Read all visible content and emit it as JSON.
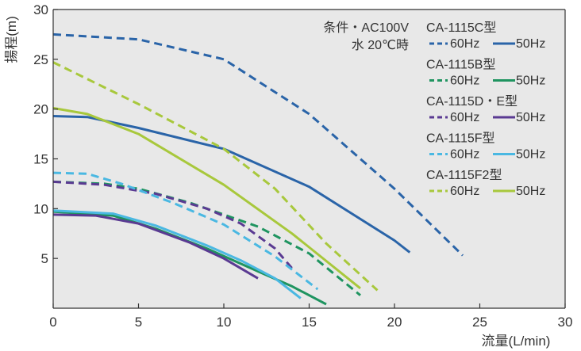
{
  "chart_data": {
    "type": "line",
    "xlabel": "流量(L/min)",
    "ylabel": "揚程(m)",
    "xlim": [
      0,
      30
    ],
    "ylim": [
      0,
      30
    ],
    "xticks": [
      "0",
      "5",
      "10",
      "15",
      "20",
      "25",
      "30"
    ],
    "yticks": [
      "5",
      "10",
      "15",
      "20",
      "25",
      "30"
    ],
    "grid": false,
    "background": "#e8e8e8",
    "conditions": [
      "条件・AC100V",
      "水 20℃時"
    ],
    "legend_position": "top-right",
    "models": [
      {
        "model": "CA-1115C型",
        "color": "#2a64a8",
        "labels": [
          "60Hz",
          "50Hz"
        ]
      },
      {
        "model": "CA-1115B型",
        "color": "#1f9460",
        "labels": [
          "60Hz",
          "50Hz"
        ]
      },
      {
        "model": "CA-1115D・E型",
        "color": "#5a3a92",
        "labels": [
          "60Hz",
          "50Hz"
        ]
      },
      {
        "model": "CA-1115F型",
        "color": "#4ab8e2",
        "labels": [
          "60Hz",
          "50Hz"
        ]
      },
      {
        "model": "CA-1115F2型",
        "color": "#a8c83c",
        "labels": [
          "60Hz",
          "50Hz"
        ]
      }
    ],
    "series": [
      {
        "model": "CA-1115C型",
        "freq": "60Hz",
        "dash": true,
        "color": "#2a64a8",
        "points": [
          [
            0,
            27.5
          ],
          [
            5,
            27
          ],
          [
            10,
            25
          ],
          [
            15,
            19.5
          ],
          [
            20,
            12
          ],
          [
            24,
            5.3
          ]
        ]
      },
      {
        "model": "CA-1115C型",
        "freq": "50Hz",
        "dash": false,
        "color": "#2a64a8",
        "points": [
          [
            0,
            19.3
          ],
          [
            2,
            19.2
          ],
          [
            5,
            18.1
          ],
          [
            10,
            16
          ],
          [
            15,
            12.2
          ],
          [
            20,
            6.8
          ],
          [
            20.9,
            5.6
          ]
        ]
      },
      {
        "model": "CA-1115B型",
        "freq": "60Hz",
        "dash": true,
        "color": "#1f9460",
        "points": [
          [
            0,
            12.7
          ],
          [
            3,
            12.5
          ],
          [
            5,
            12
          ],
          [
            8,
            10.6
          ],
          [
            10,
            9.4
          ],
          [
            12,
            8.2
          ],
          [
            15,
            5.5
          ],
          [
            18,
            1.3
          ]
        ]
      },
      {
        "model": "CA-1115B型",
        "freq": "50Hz",
        "dash": false,
        "color": "#1f9460",
        "points": [
          [
            0,
            9.7
          ],
          [
            3.5,
            9.3
          ],
          [
            6,
            8
          ],
          [
            9,
            6
          ],
          [
            12,
            3.7
          ],
          [
            14,
            2.2
          ],
          [
            16,
            0.4
          ]
        ]
      },
      {
        "model": "CA-1115D・E型",
        "freq": "60Hz",
        "dash": true,
        "color": "#5a3a92",
        "points": [
          [
            0,
            12.7
          ],
          [
            3,
            12.4
          ],
          [
            6,
            11.5
          ],
          [
            9,
            10
          ],
          [
            11,
            8.5
          ],
          [
            13,
            6
          ],
          [
            14,
            4
          ]
        ]
      },
      {
        "model": "CA-1115D・E型",
        "freq": "50Hz",
        "dash": false,
        "color": "#5a3a92",
        "points": [
          [
            0,
            9.4
          ],
          [
            2.5,
            9.3
          ],
          [
            5,
            8.5
          ],
          [
            8,
            6.6
          ],
          [
            10,
            5
          ],
          [
            12,
            3
          ]
        ]
      },
      {
        "model": "CA-1115F型",
        "freq": "60Hz",
        "dash": true,
        "color": "#4ab8e2",
        "points": [
          [
            0,
            13.6
          ],
          [
            2,
            13.5
          ],
          [
            4,
            12.5
          ],
          [
            7,
            10.6
          ],
          [
            10,
            8.4
          ],
          [
            13,
            5.2
          ],
          [
            15.5,
            1.9
          ]
        ]
      },
      {
        "model": "CA-1115F型",
        "freq": "50Hz",
        "dash": false,
        "color": "#4ab8e2",
        "points": [
          [
            0,
            9.8
          ],
          [
            3.5,
            9.5
          ],
          [
            6,
            8.3
          ],
          [
            9,
            6.3
          ],
          [
            11,
            4.8
          ],
          [
            13,
            3
          ],
          [
            14.5,
            1
          ]
        ]
      },
      {
        "model": "CA-1115F2型",
        "freq": "60Hz",
        "dash": true,
        "color": "#a8c83c",
        "points": [
          [
            0,
            24.7
          ],
          [
            5,
            20.5
          ],
          [
            10,
            16
          ],
          [
            13,
            12
          ],
          [
            16,
            6.5
          ],
          [
            19,
            1.8
          ]
        ]
      },
      {
        "model": "CA-1115F2型",
        "freq": "50Hz",
        "dash": false,
        "color": "#a8c83c",
        "points": [
          [
            0,
            20.1
          ],
          [
            2,
            19.5
          ],
          [
            5,
            17.5
          ],
          [
            10,
            12.4
          ],
          [
            14,
            7.5
          ],
          [
            18,
            2
          ]
        ]
      }
    ]
  }
}
